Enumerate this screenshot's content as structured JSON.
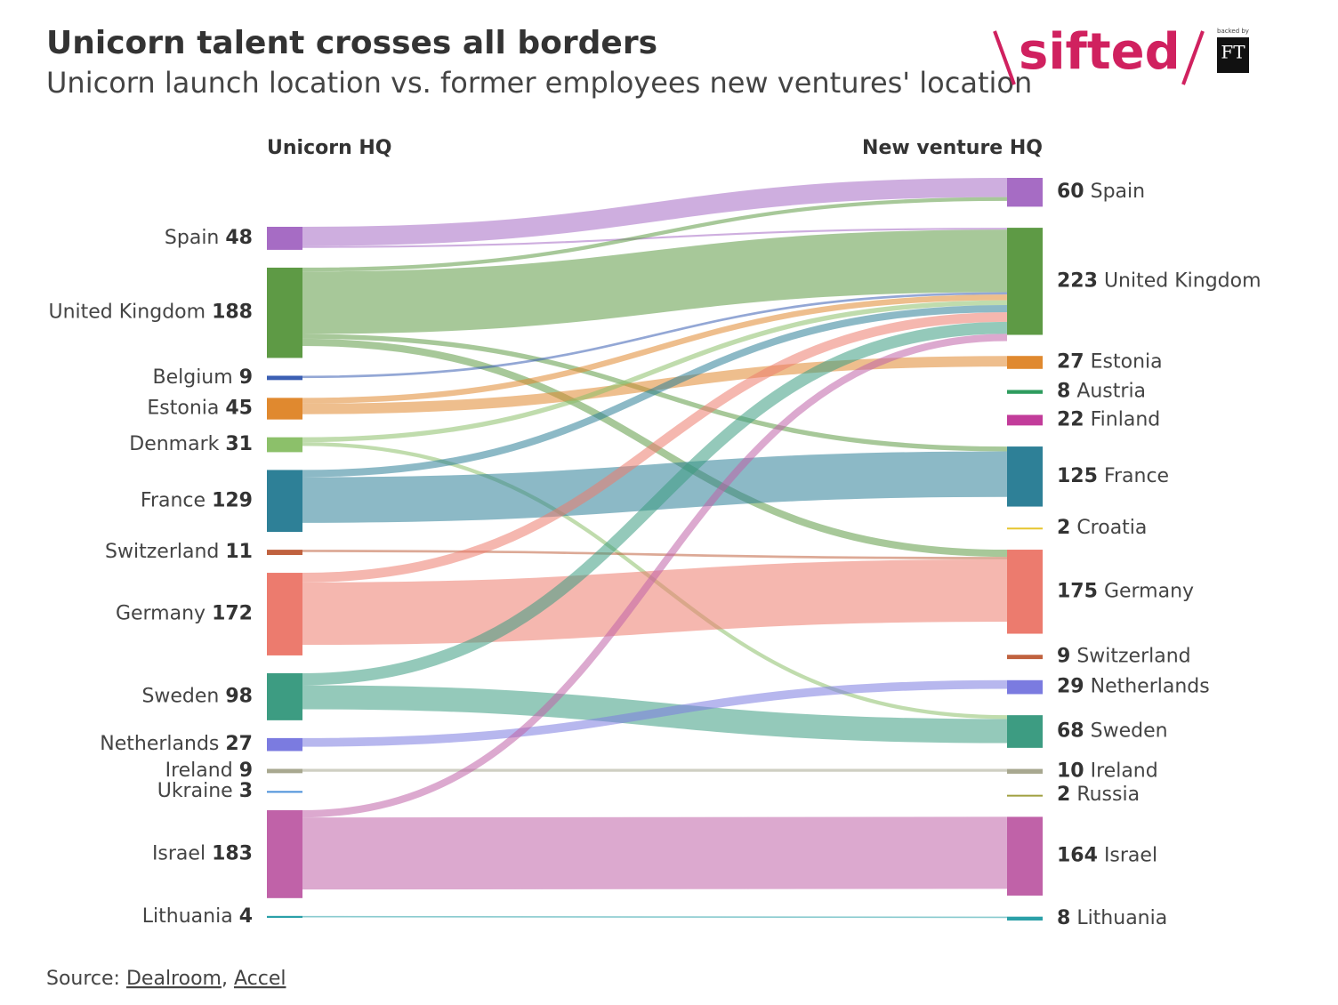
{
  "chart_data": {
    "type": "sankey",
    "title": "Unicorn talent crosses all borders",
    "subtitle": "Unicorn launch location vs. former employees new ventures' location",
    "left_header": "Unicorn HQ",
    "right_header": "New venture HQ",
    "logo": "sifted",
    "logo_backer": "backed by",
    "logo_ft": "FT",
    "source_label": "Source:",
    "sources": [
      "Dealroom",
      "Accel"
    ],
    "source_nodes": [
      {
        "name": "Spain",
        "value": 48,
        "color": "#a66cc4"
      },
      {
        "name": "United Kingdom",
        "value": 188,
        "color": "#5e9a45"
      },
      {
        "name": "Belgium",
        "value": 9,
        "color": "#3b5fb3"
      },
      {
        "name": "Estonia",
        "value": 45,
        "color": "#e0892f"
      },
      {
        "name": "Denmark",
        "value": 31,
        "color": "#8cc06a"
      },
      {
        "name": "France",
        "value": 129,
        "color": "#2e8097"
      },
      {
        "name": "Switzerland",
        "value": 11,
        "color": "#c0623f"
      },
      {
        "name": "Germany",
        "value": 172,
        "color": "#ec7b6e"
      },
      {
        "name": "Sweden",
        "value": 98,
        "color": "#3d9c82"
      },
      {
        "name": "Netherlands",
        "value": 27,
        "color": "#7b7be0"
      },
      {
        "name": "Ireland",
        "value": 9,
        "color": "#a8a890"
      },
      {
        "name": "Ukraine",
        "value": 3,
        "color": "#4a8fd9"
      },
      {
        "name": "Israel",
        "value": 183,
        "color": "#c062a8"
      },
      {
        "name": "Lithuania",
        "value": 4,
        "color": "#2aa0a8"
      }
    ],
    "target_nodes": [
      {
        "name": "Spain",
        "value": 60,
        "color": "#a66cc4"
      },
      {
        "name": "United Kingdom",
        "value": 223,
        "color": "#5e9a45"
      },
      {
        "name": "Estonia",
        "value": 27,
        "color": "#e0892f"
      },
      {
        "name": "Austria",
        "value": 8,
        "color": "#2e9c5e"
      },
      {
        "name": "Finland",
        "value": 22,
        "color": "#c23c9a"
      },
      {
        "name": "France",
        "value": 125,
        "color": "#2e8097"
      },
      {
        "name": "Croatia",
        "value": 2,
        "color": "#e6c52e"
      },
      {
        "name": "Germany",
        "value": 175,
        "color": "#ec7b6e"
      },
      {
        "name": "Switzerland",
        "value": 9,
        "color": "#c0623f"
      },
      {
        "name": "Netherlands",
        "value": 29,
        "color": "#7b7be0"
      },
      {
        "name": "Sweden",
        "value": 68,
        "color": "#3d9c82"
      },
      {
        "name": "Ireland",
        "value": 10,
        "color": "#a8a890"
      },
      {
        "name": "Russia",
        "value": 2,
        "color": "#a0a040"
      },
      {
        "name": "Israel",
        "value": 164,
        "color": "#c062a8"
      },
      {
        "name": "Lithuania",
        "value": 8,
        "color": "#2aa0a8"
      }
    ],
    "links": [
      {
        "source": 0,
        "target": 0,
        "value": 40
      },
      {
        "source": 0,
        "target": 1,
        "value": 4
      },
      {
        "source": 1,
        "target": 0,
        "value": 8
      },
      {
        "source": 1,
        "target": 1,
        "value": 130
      },
      {
        "source": 1,
        "target": 5,
        "value": 10
      },
      {
        "source": 1,
        "target": 7,
        "value": 15
      },
      {
        "source": 2,
        "target": 1,
        "value": 5
      },
      {
        "source": 3,
        "target": 1,
        "value": 12
      },
      {
        "source": 3,
        "target": 2,
        "value": 22
      },
      {
        "source": 4,
        "target": 1,
        "value": 10
      },
      {
        "source": 4,
        "target": 10,
        "value": 8
      },
      {
        "source": 5,
        "target": 1,
        "value": 15
      },
      {
        "source": 5,
        "target": 5,
        "value": 95
      },
      {
        "source": 6,
        "target": 7,
        "value": 5
      },
      {
        "source": 7,
        "target": 1,
        "value": 20
      },
      {
        "source": 7,
        "target": 7,
        "value": 130
      },
      {
        "source": 8,
        "target": 1,
        "value": 25
      },
      {
        "source": 8,
        "target": 10,
        "value": 50
      },
      {
        "source": 9,
        "target": 9,
        "value": 18
      },
      {
        "source": 10,
        "target": 11,
        "value": 6
      },
      {
        "source": 12,
        "target": 1,
        "value": 15
      },
      {
        "source": 12,
        "target": 13,
        "value": 150
      },
      {
        "source": 13,
        "target": 14,
        "value": 3
      }
    ]
  }
}
